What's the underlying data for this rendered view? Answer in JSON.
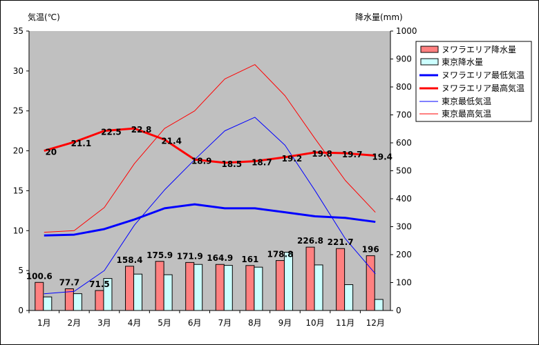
{
  "chart_data": {
    "type": "bar",
    "left_axis_title": "気温(℃)",
    "right_axis_title": "降水量(mm)",
    "categories": [
      "1月",
      "2月",
      "3月",
      "4月",
      "5月",
      "6月",
      "7月",
      "8月",
      "9月",
      "10月",
      "11月",
      "12月"
    ],
    "left_axis": {
      "min": 0,
      "max": 35,
      "ticks": [
        "0",
        "5",
        "10",
        "15",
        "20",
        "25",
        "30",
        "35"
      ]
    },
    "right_axis": {
      "min": 0,
      "max": 1000,
      "ticks": [
        "0",
        "100",
        "200",
        "300",
        "400",
        "500",
        "600",
        "700",
        "800",
        "900",
        "1000"
      ]
    },
    "grid": false,
    "legend_position": "right",
    "plot_background": "#c0c0c0",
    "bar_series": [
      {
        "name": "ヌワラエリア降水量",
        "axis": "right",
        "color": "#ff8080",
        "values": [
          100.6,
          77.7,
          71.5,
          158.4,
          175.9,
          171.9,
          164.9,
          161,
          178.8,
          226.8,
          221.7,
          196
        ],
        "labels": [
          "100.6",
          "77.7",
          "71.5",
          "158.4",
          "175.9",
          "171.9",
          "164.9",
          "161",
          "178.8",
          "226.8",
          "221.7",
          "196"
        ]
      },
      {
        "name": "東京降水量",
        "axis": "right",
        "color": "#ccffff",
        "values": [
          48.6,
          60.2,
          114.5,
          130.3,
          128,
          164.9,
          161.5,
          155.1,
          208.5,
          163.1,
          92.5,
          39.6
        ]
      }
    ],
    "line_series": [
      {
        "name": "ヌワラエリア最低気温",
        "axis": "left",
        "color": "#0000ff",
        "width": 3,
        "values": [
          9.4,
          9.5,
          10.2,
          11.4,
          12.8,
          13.3,
          12.8,
          12.8,
          12.3,
          11.8,
          11.6,
          11.1
        ]
      },
      {
        "name": "ヌワラエリア最高気温",
        "axis": "left",
        "color": "#ff0000",
        "width": 3,
        "values": [
          20,
          21.1,
          22.5,
          22.8,
          21.4,
          18.9,
          18.5,
          18.7,
          19.2,
          19.8,
          19.7,
          19.4
        ],
        "labels": [
          "20",
          "21.1",
          "22.5",
          "22.8",
          "21.4",
          "18.9",
          "18.5",
          "18.7",
          "19.2",
          "19.8",
          "19.7",
          "19.4"
        ]
      },
      {
        "name": "東京最低気温",
        "axis": "left",
        "color": "#0000ff",
        "width": 1,
        "values": [
          2.1,
          2.4,
          5.0,
          10.7,
          15.1,
          18.9,
          22.5,
          24.2,
          20.7,
          15.0,
          9.0,
          4.6
        ]
      },
      {
        "name": "東京最高気温",
        "axis": "left",
        "color": "#ff0000",
        "width": 1,
        "values": [
          9.8,
          10.0,
          12.9,
          18.4,
          22.8,
          25.0,
          29.0,
          30.8,
          26.9,
          21.5,
          16.3,
          12.3
        ]
      }
    ]
  }
}
